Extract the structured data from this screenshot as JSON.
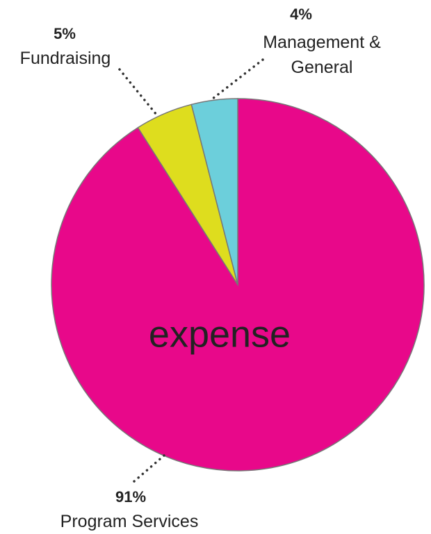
{
  "chart_data": {
    "type": "pie",
    "center_label": "expense",
    "categories": [
      "Program Services",
      "Fundraising",
      "Management & General"
    ],
    "values": [
      91,
      5,
      4
    ],
    "value_labels": [
      "91%",
      "5%",
      "4%"
    ],
    "colors": [
      "#e8088a",
      "#dedd1e",
      "#6ccfdb"
    ]
  }
}
